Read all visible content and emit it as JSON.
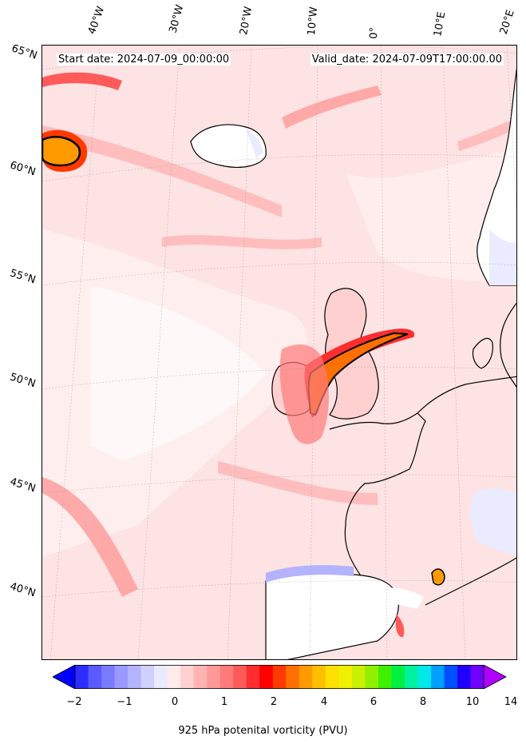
{
  "map": {
    "start_date": "Start date: 2024-07-09_00:00:00",
    "valid_date": "Valid_date: 2024-07-09T17:00:00.00",
    "longitude_labels": [
      "40°W",
      "30°W",
      "20°W",
      "10°W",
      "0°",
      "10°E",
      "20°E"
    ],
    "latitude_labels": [
      "65°N",
      "60°N",
      "55°N",
      "50°N",
      "45°N",
      "40°N"
    ],
    "coastline_color": "#000000",
    "land_mask_color": "#ffffff"
  },
  "colorbar": {
    "label": "925 hPa potenital vorticity (PVU)",
    "ticks": [
      "−2",
      "−1",
      "0",
      "1",
      "2",
      "4",
      "6",
      "8",
      "10",
      "14"
    ],
    "colors": [
      "#0000ff",
      "#2d2dff",
      "#5a5aff",
      "#7a7aff",
      "#9999ff",
      "#b3b3ff",
      "#d0d0ff",
      "#ebebff",
      "#ffebeb",
      "#ffd0d0",
      "#ffb3b3",
      "#ff9999",
      "#ff7a7a",
      "#ff5a5a",
      "#ff2d2d",
      "#ff0000",
      "#ff3a00",
      "#ff7000",
      "#ff9a00",
      "#ffc000",
      "#ffe000",
      "#f0f000",
      "#c8f000",
      "#90f000",
      "#40f000",
      "#00f040",
      "#00f0a0",
      "#00e8e8",
      "#00a0ff",
      "#0050ff",
      "#2000ff",
      "#7000ff",
      "#b000ff"
    ]
  }
}
